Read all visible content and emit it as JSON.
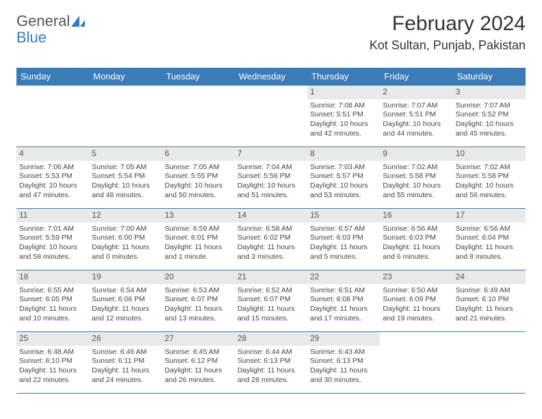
{
  "brand": {
    "text1": "General",
    "text2": "Blue",
    "logo_color": "#3a7cb8"
  },
  "title": {
    "month_year": "February 2024",
    "location": "Kot Sultan, Punjab, Pakistan"
  },
  "colors": {
    "header_bg": "#3a7cb8",
    "header_fg": "#ffffff",
    "daynum_bg": "#e9e9e9",
    "border": "#3a7cb8",
    "text": "#444444",
    "background": "#ffffff"
  },
  "typography": {
    "title_fontsize": 30,
    "location_fontsize": 18,
    "weekday_fontsize": 13,
    "cell_fontsize": 10.5
  },
  "weekdays": [
    "Sunday",
    "Monday",
    "Tuesday",
    "Wednesday",
    "Thursday",
    "Friday",
    "Saturday"
  ],
  "weeks": [
    [
      null,
      null,
      null,
      null,
      {
        "n": "1",
        "sr": "Sunrise: 7:08 AM",
        "ss": "Sunset: 5:51 PM",
        "dl": "Daylight: 10 hours and 42 minutes."
      },
      {
        "n": "2",
        "sr": "Sunrise: 7:07 AM",
        "ss": "Sunset: 5:51 PM",
        "dl": "Daylight: 10 hours and 44 minutes."
      },
      {
        "n": "3",
        "sr": "Sunrise: 7:07 AM",
        "ss": "Sunset: 5:52 PM",
        "dl": "Daylight: 10 hours and 45 minutes."
      }
    ],
    [
      {
        "n": "4",
        "sr": "Sunrise: 7:06 AM",
        "ss": "Sunset: 5:53 PM",
        "dl": "Daylight: 10 hours and 47 minutes."
      },
      {
        "n": "5",
        "sr": "Sunrise: 7:05 AM",
        "ss": "Sunset: 5:54 PM",
        "dl": "Daylight: 10 hours and 48 minutes."
      },
      {
        "n": "6",
        "sr": "Sunrise: 7:05 AM",
        "ss": "Sunset: 5:55 PM",
        "dl": "Daylight: 10 hours and 50 minutes."
      },
      {
        "n": "7",
        "sr": "Sunrise: 7:04 AM",
        "ss": "Sunset: 5:56 PM",
        "dl": "Daylight: 10 hours and 51 minutes."
      },
      {
        "n": "8",
        "sr": "Sunrise: 7:03 AM",
        "ss": "Sunset: 5:57 PM",
        "dl": "Daylight: 10 hours and 53 minutes."
      },
      {
        "n": "9",
        "sr": "Sunrise: 7:02 AM",
        "ss": "Sunset: 5:58 PM",
        "dl": "Daylight: 10 hours and 55 minutes."
      },
      {
        "n": "10",
        "sr": "Sunrise: 7:02 AM",
        "ss": "Sunset: 5:58 PM",
        "dl": "Daylight: 10 hours and 56 minutes."
      }
    ],
    [
      {
        "n": "11",
        "sr": "Sunrise: 7:01 AM",
        "ss": "Sunset: 5:59 PM",
        "dl": "Daylight: 10 hours and 58 minutes."
      },
      {
        "n": "12",
        "sr": "Sunrise: 7:00 AM",
        "ss": "Sunset: 6:00 PM",
        "dl": "Daylight: 11 hours and 0 minutes."
      },
      {
        "n": "13",
        "sr": "Sunrise: 6:59 AM",
        "ss": "Sunset: 6:01 PM",
        "dl": "Daylight: 11 hours and 1 minute."
      },
      {
        "n": "14",
        "sr": "Sunrise: 6:58 AM",
        "ss": "Sunset: 6:02 PM",
        "dl": "Daylight: 11 hours and 3 minutes."
      },
      {
        "n": "15",
        "sr": "Sunrise: 6:57 AM",
        "ss": "Sunset: 6:03 PM",
        "dl": "Daylight: 11 hours and 5 minutes."
      },
      {
        "n": "16",
        "sr": "Sunrise: 6:56 AM",
        "ss": "Sunset: 6:03 PM",
        "dl": "Daylight: 11 hours and 6 minutes."
      },
      {
        "n": "17",
        "sr": "Sunrise: 6:56 AM",
        "ss": "Sunset: 6:04 PM",
        "dl": "Daylight: 11 hours and 8 minutes."
      }
    ],
    [
      {
        "n": "18",
        "sr": "Sunrise: 6:55 AM",
        "ss": "Sunset: 6:05 PM",
        "dl": "Daylight: 11 hours and 10 minutes."
      },
      {
        "n": "19",
        "sr": "Sunrise: 6:54 AM",
        "ss": "Sunset: 6:06 PM",
        "dl": "Daylight: 11 hours and 12 minutes."
      },
      {
        "n": "20",
        "sr": "Sunrise: 6:53 AM",
        "ss": "Sunset: 6:07 PM",
        "dl": "Daylight: 11 hours and 13 minutes."
      },
      {
        "n": "21",
        "sr": "Sunrise: 6:52 AM",
        "ss": "Sunset: 6:07 PM",
        "dl": "Daylight: 11 hours and 15 minutes."
      },
      {
        "n": "22",
        "sr": "Sunrise: 6:51 AM",
        "ss": "Sunset: 6:08 PM",
        "dl": "Daylight: 11 hours and 17 minutes."
      },
      {
        "n": "23",
        "sr": "Sunrise: 6:50 AM",
        "ss": "Sunset: 6:09 PM",
        "dl": "Daylight: 11 hours and 19 minutes."
      },
      {
        "n": "24",
        "sr": "Sunrise: 6:49 AM",
        "ss": "Sunset: 6:10 PM",
        "dl": "Daylight: 11 hours and 21 minutes."
      }
    ],
    [
      {
        "n": "25",
        "sr": "Sunrise: 6:48 AM",
        "ss": "Sunset: 6:10 PM",
        "dl": "Daylight: 11 hours and 22 minutes."
      },
      {
        "n": "26",
        "sr": "Sunrise: 6:46 AM",
        "ss": "Sunset: 6:11 PM",
        "dl": "Daylight: 11 hours and 24 minutes."
      },
      {
        "n": "27",
        "sr": "Sunrise: 6:45 AM",
        "ss": "Sunset: 6:12 PM",
        "dl": "Daylight: 11 hours and 26 minutes."
      },
      {
        "n": "28",
        "sr": "Sunrise: 6:44 AM",
        "ss": "Sunset: 6:13 PM",
        "dl": "Daylight: 11 hours and 28 minutes."
      },
      {
        "n": "29",
        "sr": "Sunrise: 6:43 AM",
        "ss": "Sunset: 6:13 PM",
        "dl": "Daylight: 11 hours and 30 minutes."
      },
      null,
      null
    ]
  ]
}
